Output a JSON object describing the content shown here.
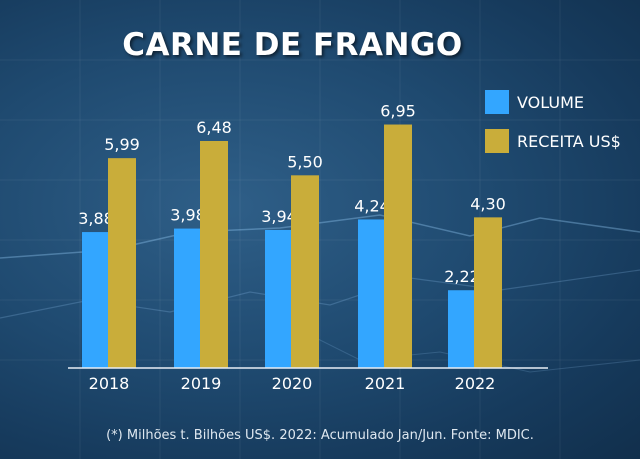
{
  "title": "CARNE DE FRANGO",
  "footnote": "(*) Milhões t. Bilhões US$. 2022: Acumulado Jan/Jun. Fonte: MDIC.",
  "colors": {
    "volume": "#33a6ff",
    "receita": "#c9ad3a",
    "background": "#1f4a70"
  },
  "chart_data": {
    "type": "bar",
    "title": "CARNE DE FRANGO",
    "categories": [
      "2018",
      "2019",
      "2020",
      "2021",
      "2022"
    ],
    "series": [
      {
        "name": "VOLUME",
        "values": [
          3.88,
          3.98,
          3.94,
          4.24,
          2.22
        ],
        "labels": [
          "3,88",
          "3,98",
          "3,94",
          "4,24",
          "2,22"
        ],
        "color": "#33a6ff"
      },
      {
        "name": "RECEITA US$",
        "values": [
          5.99,
          6.48,
          5.5,
          6.95,
          4.3
        ],
        "labels": [
          "5,99",
          "6,48",
          "5,50",
          "6,95",
          "4,30"
        ],
        "color": "#c9ad3a"
      }
    ],
    "ylim": [
      0,
      7.65
    ],
    "xlabel": "",
    "ylabel": "",
    "grid": false,
    "legend": "top-right"
  }
}
